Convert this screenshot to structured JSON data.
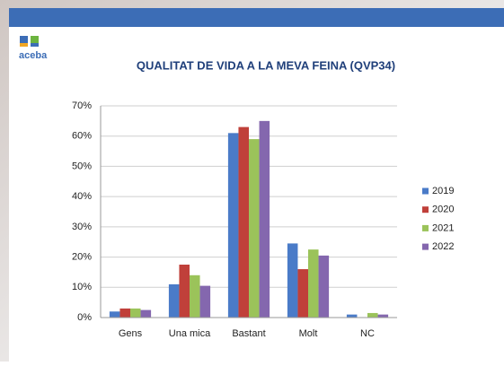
{
  "logo": "aceba",
  "chart_data": {
    "type": "bar",
    "title": "QUALITAT DE VIDA A LA MEVA FEINA (QVP34)",
    "categories": [
      "Gens",
      "Una mica",
      "Bastant",
      "Molt",
      "NC"
    ],
    "series": [
      {
        "name": "2019",
        "color": "#4a7bc8",
        "values": [
          2,
          11,
          61,
          24.5,
          1
        ]
      },
      {
        "name": "2020",
        "color": "#c0403a",
        "values": [
          3,
          17.5,
          63,
          16,
          0
        ]
      },
      {
        "name": "2021",
        "color": "#9bc35a",
        "values": [
          3,
          14,
          59,
          22.5,
          1.5
        ]
      },
      {
        "name": "2022",
        "color": "#8467ae",
        "values": [
          2.5,
          10.5,
          65,
          20.5,
          1
        ]
      }
    ],
    "ylim": [
      0,
      70
    ],
    "yticks": [
      {
        "value": 0,
        "label": "0%"
      },
      {
        "value": 10,
        "label": "10%"
      },
      {
        "value": 20,
        "label": "20%"
      },
      {
        "value": 30,
        "label": "30%"
      },
      {
        "value": 40,
        "label": "40%"
      },
      {
        "value": 50,
        "label": "50%"
      },
      {
        "value": 60,
        "label": "60%"
      },
      {
        "value": 70,
        "label": "70%"
      }
    ],
    "grid": true,
    "legend": "right"
  }
}
